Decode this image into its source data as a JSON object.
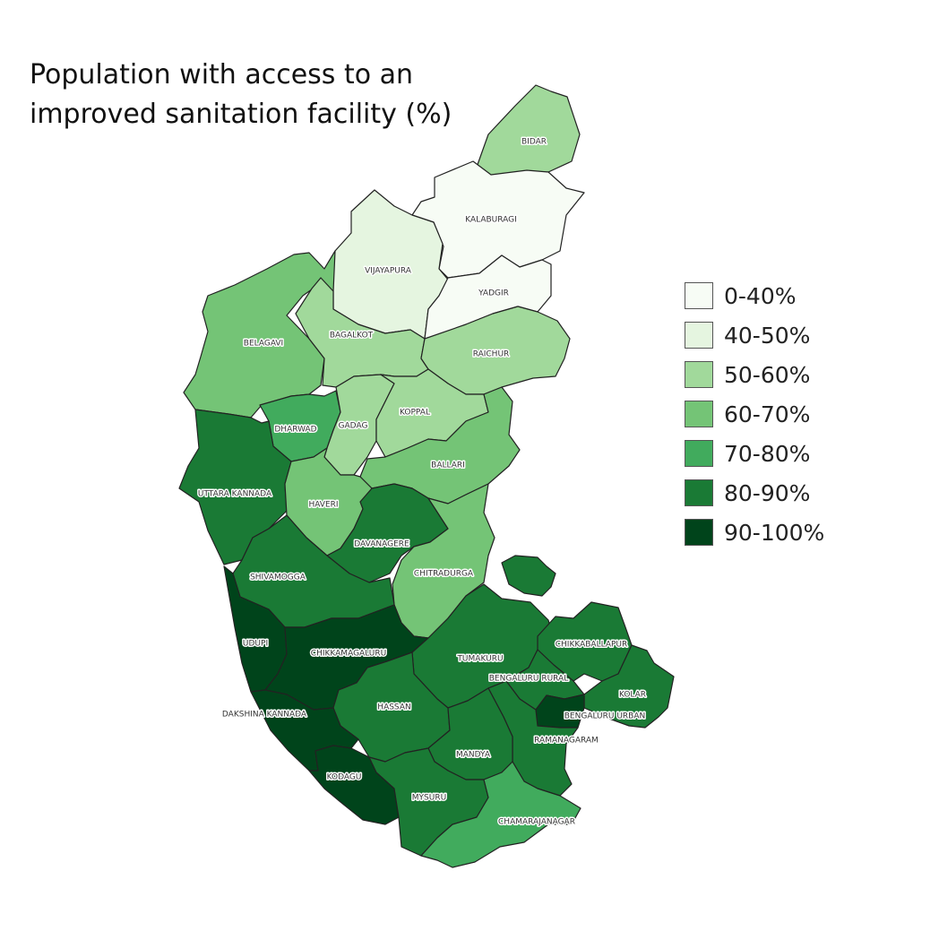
{
  "title": "Population with access to an improved sanitation facility (%)",
  "legend": [
    {
      "label": "0-40%",
      "color": "#f7fcf5"
    },
    {
      "label": "40-50%",
      "color": "#e5f5e0"
    },
    {
      "label": "50-60%",
      "color": "#a1d99b"
    },
    {
      "label": "60-70%",
      "color": "#74c476"
    },
    {
      "label": "70-80%",
      "color": "#41ab5d"
    },
    {
      "label": "80-90%",
      "color": "#1a7a35"
    },
    {
      "label": "90-100%",
      "color": "#00441b"
    }
  ],
  "districts": [
    {
      "name": "BIDAR",
      "bin": 2
    },
    {
      "name": "KALABURAGI",
      "bin": 0
    },
    {
      "name": "VIJAYAPURA",
      "bin": 1
    },
    {
      "name": "YADGIR",
      "bin": 0
    },
    {
      "name": "BELAGAVI",
      "bin": 3
    },
    {
      "name": "BAGALKOT",
      "bin": 2
    },
    {
      "name": "RAICHUR",
      "bin": 2
    },
    {
      "name": "DHARWAD",
      "bin": 4
    },
    {
      "name": "GADAG",
      "bin": 2
    },
    {
      "name": "KOPPAL",
      "bin": 2
    },
    {
      "name": "BALLARI",
      "bin": 3
    },
    {
      "name": "UTTARA  KANNADA",
      "bin": 5
    },
    {
      "name": "HAVERI",
      "bin": 3
    },
    {
      "name": "DAVANAGERE",
      "bin": 5
    },
    {
      "name": "CHITRADURGA",
      "bin": 3
    },
    {
      "name": "SHIVAMOGGA",
      "bin": 5
    },
    {
      "name": "UDUPI",
      "bin": 6
    },
    {
      "name": "CHIKKAMAGALURU",
      "bin": 6
    },
    {
      "name": "TUMAKURU",
      "bin": 5
    },
    {
      "name": "CHIKKABALLAPUR",
      "bin": 5
    },
    {
      "name": "BENGALURU RURAL",
      "bin": 5
    },
    {
      "name": "KOLAR",
      "bin": 5
    },
    {
      "name": "HASSAN",
      "bin": 5
    },
    {
      "name": "BENGALURU URBAN",
      "bin": 6
    },
    {
      "name": "DAKSHINA  KANNADA",
      "bin": 6
    },
    {
      "name": "RAMANAGARAM",
      "bin": 5
    },
    {
      "name": "MANDYA",
      "bin": 5
    },
    {
      "name": "KODAGU",
      "bin": 6
    },
    {
      "name": "MYSURU",
      "bin": 5
    },
    {
      "name": "CHAMARAJANAGAR",
      "bin": 4
    }
  ]
}
